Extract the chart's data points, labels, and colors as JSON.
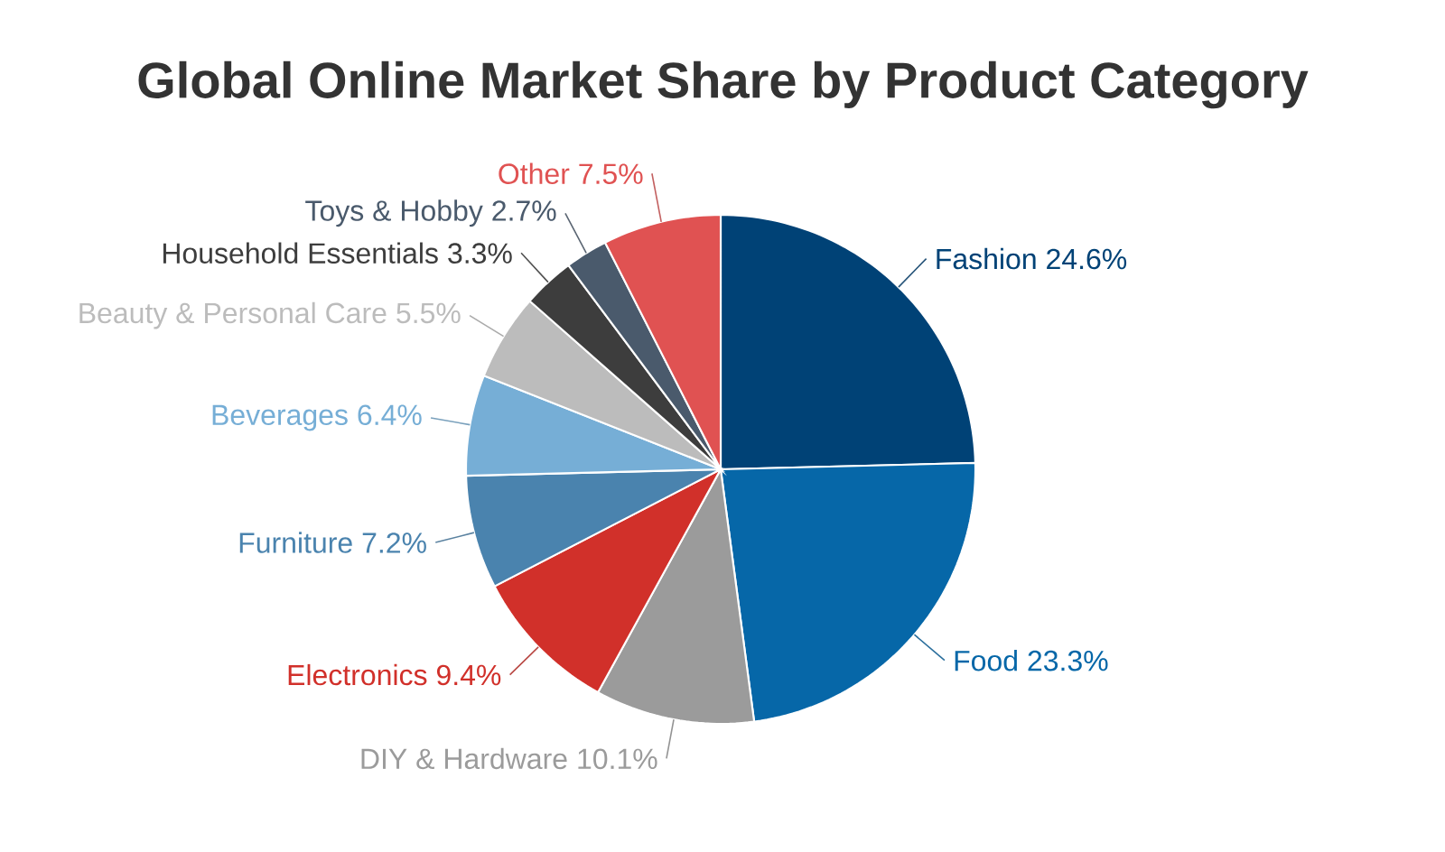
{
  "chart_data": {
    "type": "pie",
    "title": "Global Online Market Share by Product Category",
    "categories": [
      "Fashion",
      "Food",
      "DIY & Hardware",
      "Electronics",
      "Furniture",
      "Beverages",
      "Beauty & Personal Care",
      "Household Essentials",
      "Toys & Hobby",
      "Other"
    ],
    "values": [
      24.6,
      23.3,
      10.1,
      9.4,
      7.2,
      6.4,
      5.5,
      3.3,
      2.7,
      7.5
    ],
    "value_labels": [
      "24.6%",
      "23.3%",
      "10.1%",
      "9.4%",
      "7.2%",
      "6.4%",
      "5.5%",
      "3.3%",
      "2.7%",
      "7.5%"
    ],
    "colors": [
      "#004276",
      "#0667a8",
      "#9b9b9b",
      "#d1302a",
      "#4a83ae",
      "#76aed6",
      "#bcbcbc",
      "#3d3d3d",
      "#4a5a6c",
      "#e05252"
    ]
  }
}
